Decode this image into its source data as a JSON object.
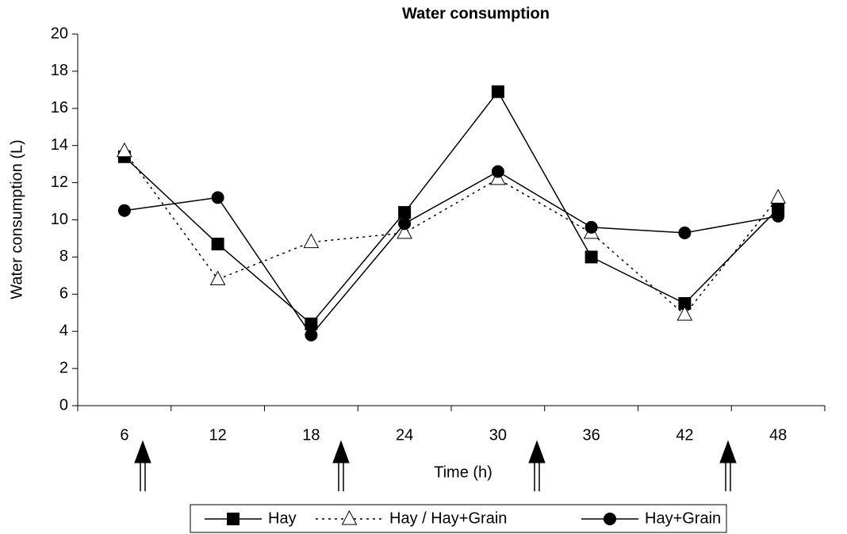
{
  "chart_data": {
    "type": "line",
    "title": "Water consumption",
    "x_label": "Time (h)",
    "y_label": "Water consumption (L)",
    "categories": [
      "6",
      "12",
      "18",
      "24",
      "30",
      "36",
      "42",
      "48"
    ],
    "series": [
      {
        "name": "Hay",
        "color": "#000000",
        "marker": "square",
        "dash": "solid",
        "values": [
          13.4,
          8.7,
          4.4,
          10.4,
          16.9,
          8.0,
          5.5,
          10.6
        ]
      },
      {
        "name": "Hay / Hay+Grain",
        "color": "#000000",
        "marker": "triangle-open",
        "dash": "dotted",
        "values": [
          13.7,
          6.8,
          8.8,
          9.3,
          12.2,
          9.3,
          4.9,
          11.2
        ]
      },
      {
        "name": "Hay+Grain",
        "color": "#000000",
        "marker": "circle",
        "dash": "solid",
        "values": [
          10.5,
          11.2,
          3.8,
          9.8,
          12.6,
          9.6,
          9.3,
          10.2
        ]
      }
    ],
    "ylim": [
      0,
      20
    ],
    "yticks": [
      0,
      2,
      4,
      6,
      8,
      10,
      12,
      14,
      16,
      18,
      20
    ],
    "grid": false,
    "legend": "bottom"
  }
}
